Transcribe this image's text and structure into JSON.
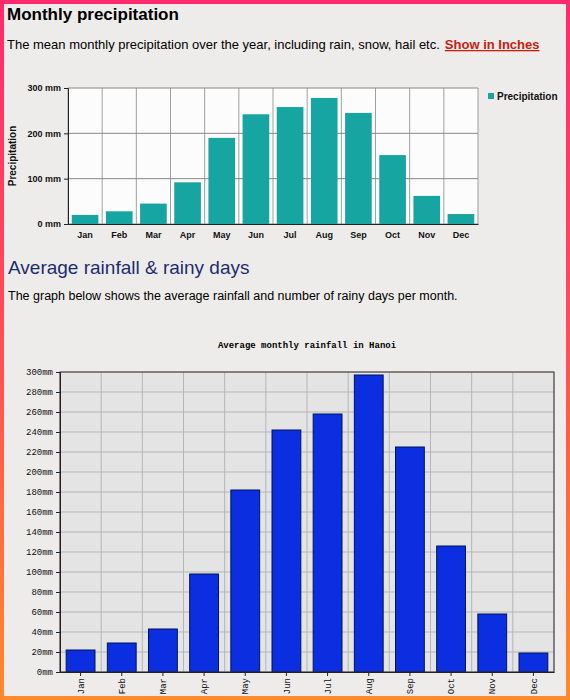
{
  "page": {
    "sections": [
      {
        "heading": "Monthly precipitation",
        "text": "The mean monthly precipitation over the year, including rain, snow, hail etc.",
        "link": "Show in Inches"
      },
      {
        "heading": "Average rainfall & rainy days",
        "text": "The graph below shows the average rainfall and number of rainy days per month."
      }
    ]
  },
  "chart_data": [
    {
      "type": "bar",
      "categories": [
        "Jan",
        "Feb",
        "Mar",
        "Apr",
        "May",
        "Jun",
        "Jul",
        "Aug",
        "Sep",
        "Oct",
        "Nov",
        "Dec"
      ],
      "series": [
        {
          "name": "Precipitation",
          "color": "#17a5a1",
          "values": [
            20,
            28,
            45,
            92,
            190,
            242,
            258,
            278,
            245,
            152,
            62,
            22
          ]
        }
      ],
      "ylabel": "Precipitation",
      "ylim": [
        0,
        300
      ],
      "yticks": [
        {
          "value": 0,
          "label": "0 mm"
        },
        {
          "value": 100,
          "label": "100 mm"
        },
        {
          "value": 200,
          "label": "200 mm"
        },
        {
          "value": 300,
          "label": "300 mm"
        }
      ],
      "grid": true,
      "legend": "right"
    },
    {
      "type": "bar",
      "title": "Average monthly rainfall in Hanoi",
      "categories": [
        "Jan",
        "Feb",
        "Mar",
        "Apr",
        "May",
        "Jun",
        "Jul",
        "Aug",
        "Sep",
        "Oct",
        "Nov",
        "Dec"
      ],
      "values": [
        22,
        29,
        43,
        98,
        182,
        242,
        258,
        297,
        225,
        126,
        58,
        19
      ],
      "color": "#0a2ee0",
      "ylim": [
        0,
        300
      ],
      "yticks": [
        {
          "value": 0,
          "label": "0mm"
        },
        {
          "value": 20,
          "label": "20mm"
        },
        {
          "value": 40,
          "label": "40mm"
        },
        {
          "value": 60,
          "label": "60mm"
        },
        {
          "value": 80,
          "label": "80mm"
        },
        {
          "value": 100,
          "label": "100mm"
        },
        {
          "value": 120,
          "label": "120mm"
        },
        {
          "value": 140,
          "label": "140mm"
        },
        {
          "value": 160,
          "label": "160mm"
        },
        {
          "value": 180,
          "label": "180mm"
        },
        {
          "value": 200,
          "label": "200mm"
        },
        {
          "value": 220,
          "label": "220mm"
        },
        {
          "value": 240,
          "label": "240mm"
        },
        {
          "value": 260,
          "label": "260mm"
        },
        {
          "value": 280,
          "label": "280mm"
        },
        {
          "value": 300,
          "label": "300mm"
        }
      ],
      "grid": true
    }
  ]
}
